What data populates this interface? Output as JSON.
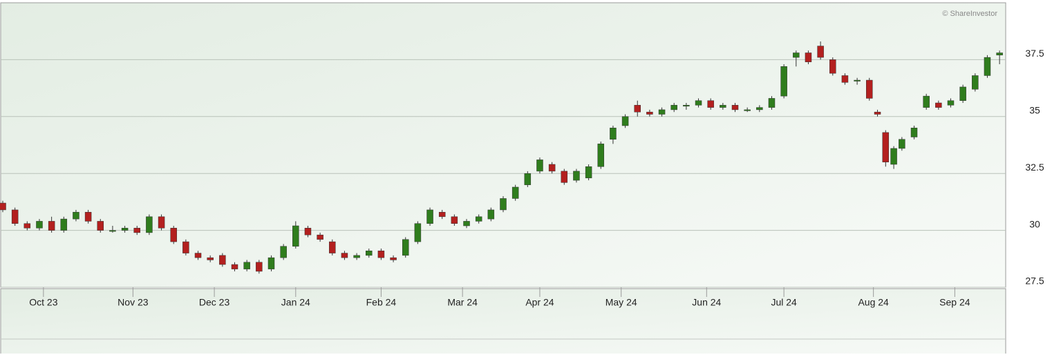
{
  "chart_data": {
    "type": "candlestick",
    "watermark": "© ShareInvestor",
    "up_color": "#2f7d1d",
    "down_color": "#b3201f",
    "grid": true,
    "xlim": [
      0,
      246
    ],
    "ylim": [
      27.5,
      40
    ],
    "yticks": [
      27.5,
      30,
      32.5,
      35,
      37.5
    ],
    "xticks": [
      {
        "value": 10,
        "label": "Oct 23"
      },
      {
        "value": 32,
        "label": "Nov 23"
      },
      {
        "value": 52,
        "label": "Dec 23"
      },
      {
        "value": 72,
        "label": "Jan 24"
      },
      {
        "value": 93,
        "label": "Feb 24"
      },
      {
        "value": 113,
        "label": "Mar 24"
      },
      {
        "value": 132,
        "label": "Apr 24"
      },
      {
        "value": 152,
        "label": "May 24"
      },
      {
        "value": 173,
        "label": "Jun 24"
      },
      {
        "value": 192,
        "label": "Jul 24"
      },
      {
        "value": 214,
        "label": "Aug 24"
      },
      {
        "value": 234,
        "label": "Sep 24"
      }
    ],
    "x": [
      0,
      3,
      6,
      9,
      12,
      15,
      18,
      21,
      24,
      27,
      30,
      33,
      36,
      39,
      42,
      45,
      48,
      51,
      54,
      57,
      60,
      63,
      66,
      69,
      72,
      75,
      78,
      81,
      84,
      87,
      90,
      93,
      96,
      99,
      102,
      105,
      108,
      111,
      114,
      117,
      120,
      123,
      126,
      129,
      132,
      135,
      138,
      141,
      144,
      147,
      150,
      153,
      156,
      159,
      162,
      165,
      168,
      171,
      174,
      177,
      180,
      183,
      186,
      189,
      192,
      195,
      198,
      201,
      204,
      207,
      210,
      213,
      215,
      217,
      219,
      221,
      224,
      227,
      230,
      233,
      236,
      239,
      242,
      245
    ],
    "open": [
      31.2,
      30.9,
      30.3,
      30.1,
      30.4,
      30.0,
      30.5,
      30.8,
      30.4,
      30.0,
      30.0,
      30.1,
      29.9,
      30.6,
      30.1,
      29.5,
      29.0,
      28.8,
      28.9,
      28.5,
      28.3,
      28.6,
      28.3,
      28.8,
      29.3,
      30.1,
      29.8,
      29.5,
      29.0,
      28.8,
      28.9,
      29.1,
      28.8,
      28.9,
      29.5,
      30.3,
      30.8,
      30.6,
      30.2,
      30.4,
      30.5,
      30.9,
      31.4,
      32.0,
      32.6,
      32.9,
      32.6,
      32.2,
      32.3,
      32.8,
      34.0,
      34.6,
      35.5,
      35.2,
      35.1,
      35.3,
      35.5,
      35.5,
      35.7,
      35.4,
      35.5,
      35.3,
      35.3,
      35.4,
      35.9,
      37.6,
      37.8,
      38.1,
      37.5,
      36.8,
      36.6,
      36.6,
      35.2,
      34.3,
      32.9,
      33.6,
      34.1,
      35.4,
      35.6,
      35.5,
      35.7,
      36.2,
      36.8,
      37.7
    ],
    "high": [
      31.3,
      31.0,
      30.4,
      30.5,
      30.6,
      30.6,
      30.9,
      30.9,
      30.5,
      30.2,
      30.2,
      30.2,
      30.7,
      30.7,
      30.2,
      29.6,
      29.1,
      28.9,
      29.0,
      28.6,
      28.7,
      28.7,
      28.9,
      29.4,
      30.4,
      30.2,
      29.9,
      29.6,
      29.1,
      29.0,
      29.2,
      29.2,
      28.9,
      29.7,
      30.4,
      31.0,
      30.9,
      30.7,
      30.5,
      30.7,
      31.0,
      31.5,
      32.0,
      32.6,
      33.2,
      33.0,
      32.7,
      32.7,
      32.9,
      33.9,
      34.6,
      35.1,
      35.7,
      35.3,
      35.4,
      35.6,
      35.6,
      35.8,
      35.8,
      35.6,
      35.6,
      35.4,
      35.5,
      35.9,
      37.3,
      37.9,
      37.9,
      38.3,
      37.6,
      36.9,
      36.7,
      36.7,
      35.3,
      34.4,
      33.7,
      34.1,
      34.6,
      36.0,
      35.7,
      35.8,
      36.4,
      36.9,
      37.7,
      37.9
    ],
    "low": [
      30.8,
      30.2,
      30.0,
      30.0,
      29.9,
      29.9,
      30.4,
      30.3,
      29.9,
      29.9,
      29.9,
      29.8,
      29.8,
      30.0,
      29.4,
      28.9,
      28.7,
      28.6,
      28.4,
      28.2,
      28.2,
      28.1,
      28.2,
      28.7,
      29.2,
      29.7,
      29.5,
      28.9,
      28.7,
      28.7,
      28.8,
      28.7,
      28.6,
      28.8,
      29.4,
      30.2,
      30.5,
      30.2,
      30.1,
      30.3,
      30.4,
      30.8,
      31.3,
      31.9,
      32.5,
      32.5,
      32.0,
      32.1,
      32.2,
      32.7,
      33.8,
      34.5,
      35.0,
      35.0,
      35.0,
      35.2,
      35.3,
      35.4,
      35.3,
      35.3,
      35.2,
      35.2,
      35.2,
      35.3,
      35.8,
      37.2,
      37.3,
      37.5,
      36.8,
      36.4,
      36.4,
      35.7,
      35.0,
      32.8,
      32.7,
      33.5,
      34.0,
      35.3,
      35.3,
      35.4,
      35.6,
      36.1,
      36.7,
      37.3
    ],
    "close": [
      30.9,
      30.3,
      30.1,
      30.4,
      30.0,
      30.5,
      30.8,
      30.4,
      30.0,
      30.0,
      30.1,
      29.9,
      30.6,
      30.1,
      29.5,
      29.0,
      28.8,
      28.7,
      28.5,
      28.3,
      28.6,
      28.2,
      28.8,
      29.3,
      30.2,
      29.8,
      29.6,
      29.0,
      28.8,
      28.9,
      29.1,
      28.8,
      28.7,
      29.6,
      30.3,
      30.9,
      30.6,
      30.3,
      30.4,
      30.6,
      30.9,
      31.4,
      31.9,
      32.5,
      33.1,
      32.6,
      32.1,
      32.6,
      32.8,
      33.8,
      34.5,
      35.0,
      35.2,
      35.1,
      35.3,
      35.5,
      35.5,
      35.7,
      35.4,
      35.5,
      35.3,
      35.3,
      35.4,
      35.8,
      37.2,
      37.8,
      37.4,
      37.6,
      36.9,
      36.5,
      36.6,
      35.8,
      35.1,
      33.0,
      33.6,
      34.0,
      34.5,
      35.9,
      35.4,
      35.7,
      36.3,
      36.8,
      37.6,
      37.8
    ]
  }
}
